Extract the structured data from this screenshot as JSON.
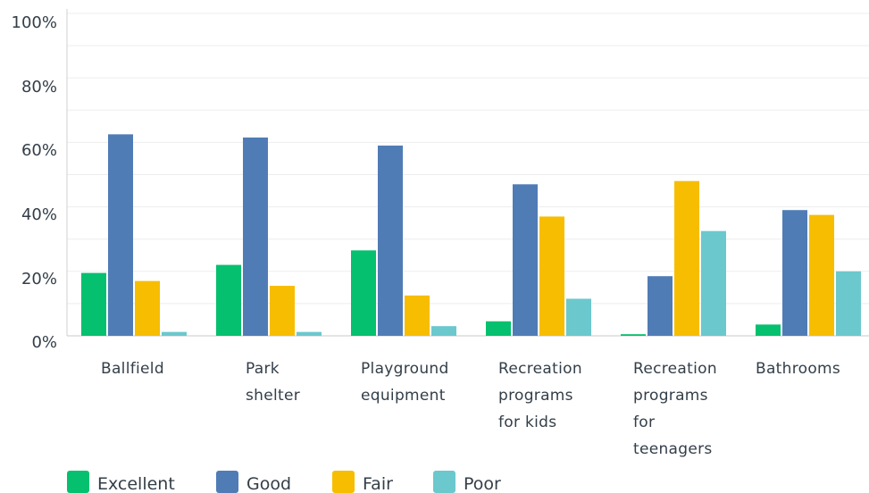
{
  "chart_data": {
    "type": "bar",
    "categories": [
      [
        "Ballfield"
      ],
      [
        "Park",
        "shelter"
      ],
      [
        "Playground",
        "equipment"
      ],
      [
        "Recreation",
        "programs",
        "for kids"
      ],
      [
        "Recreation",
        "programs",
        "for",
        "teenagers"
      ],
      [
        "Bathrooms"
      ]
    ],
    "series": [
      {
        "name": "Excellent",
        "color": "#05c06e",
        "values": [
          19.5,
          22,
          26.5,
          4.5,
          0.5,
          3.5
        ]
      },
      {
        "name": "Good",
        "color": "#507cb6",
        "values": [
          62.5,
          61.5,
          59,
          47,
          18.5,
          39
        ]
      },
      {
        "name": "Fair",
        "color": "#f7bd00",
        "values": [
          17,
          15.5,
          12.5,
          37,
          48,
          37.5
        ]
      },
      {
        "name": "Poor",
        "color": "#6bc8cd",
        "values": [
          1.2,
          1.2,
          3,
          11.5,
          32.5,
          20
        ]
      }
    ],
    "yticks": [
      "0%",
      "20%",
      "40%",
      "60%",
      "80%",
      "100%"
    ],
    "ylim": [
      0,
      100
    ],
    "grid": true,
    "legend_position": "bottom-left"
  }
}
